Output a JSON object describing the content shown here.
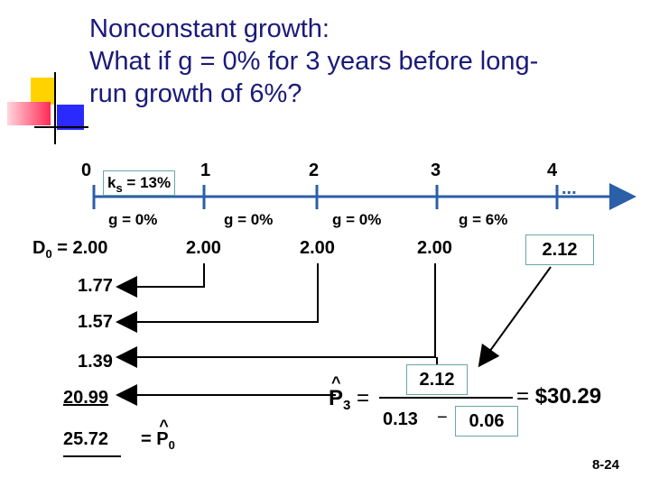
{
  "title": {
    "line1": "Nonconstant growth:",
    "line2": "What if g = 0% for 3 years before long-",
    "line3": "run growth of 6%?"
  },
  "timeline": {
    "ticks": [
      "0",
      "1",
      "2",
      "3",
      "4"
    ],
    "rate_main": "k",
    "rate_sub": "s",
    "rate_value": " = 13%",
    "ellipsis": "...",
    "growth_labels": [
      "g = 0%",
      "g = 0%",
      "g = 0%",
      "g = 6%"
    ],
    "d0_main": "D",
    "d0_sub": "0",
    "d0_value": " = 2.00",
    "dividends": [
      "2.00",
      "2.00",
      "2.00",
      "2.12"
    ]
  },
  "pv_list": [
    "1.77",
    "1.57",
    "1.39",
    "20.99",
    "25.72"
  ],
  "phat": {
    "eq": "=",
    "p": "P",
    "sub": "0"
  },
  "formula": {
    "p": "P",
    "sub": "3",
    "eq": "=",
    "numerator": "2.12",
    "denom_a": "0.13",
    "minus": "−",
    "denom_b": "0.06",
    "result_eq": "=",
    "result": "$30.29"
  },
  "page_number": "8-24",
  "colors": {
    "title": "#1a1a7a",
    "axis": "#2b5fa8",
    "box_border": "#6aa6a6",
    "deco_yellow": "#ffd200",
    "deco_red": "#ff2a55",
    "deco_blue": "#2a2aff"
  }
}
